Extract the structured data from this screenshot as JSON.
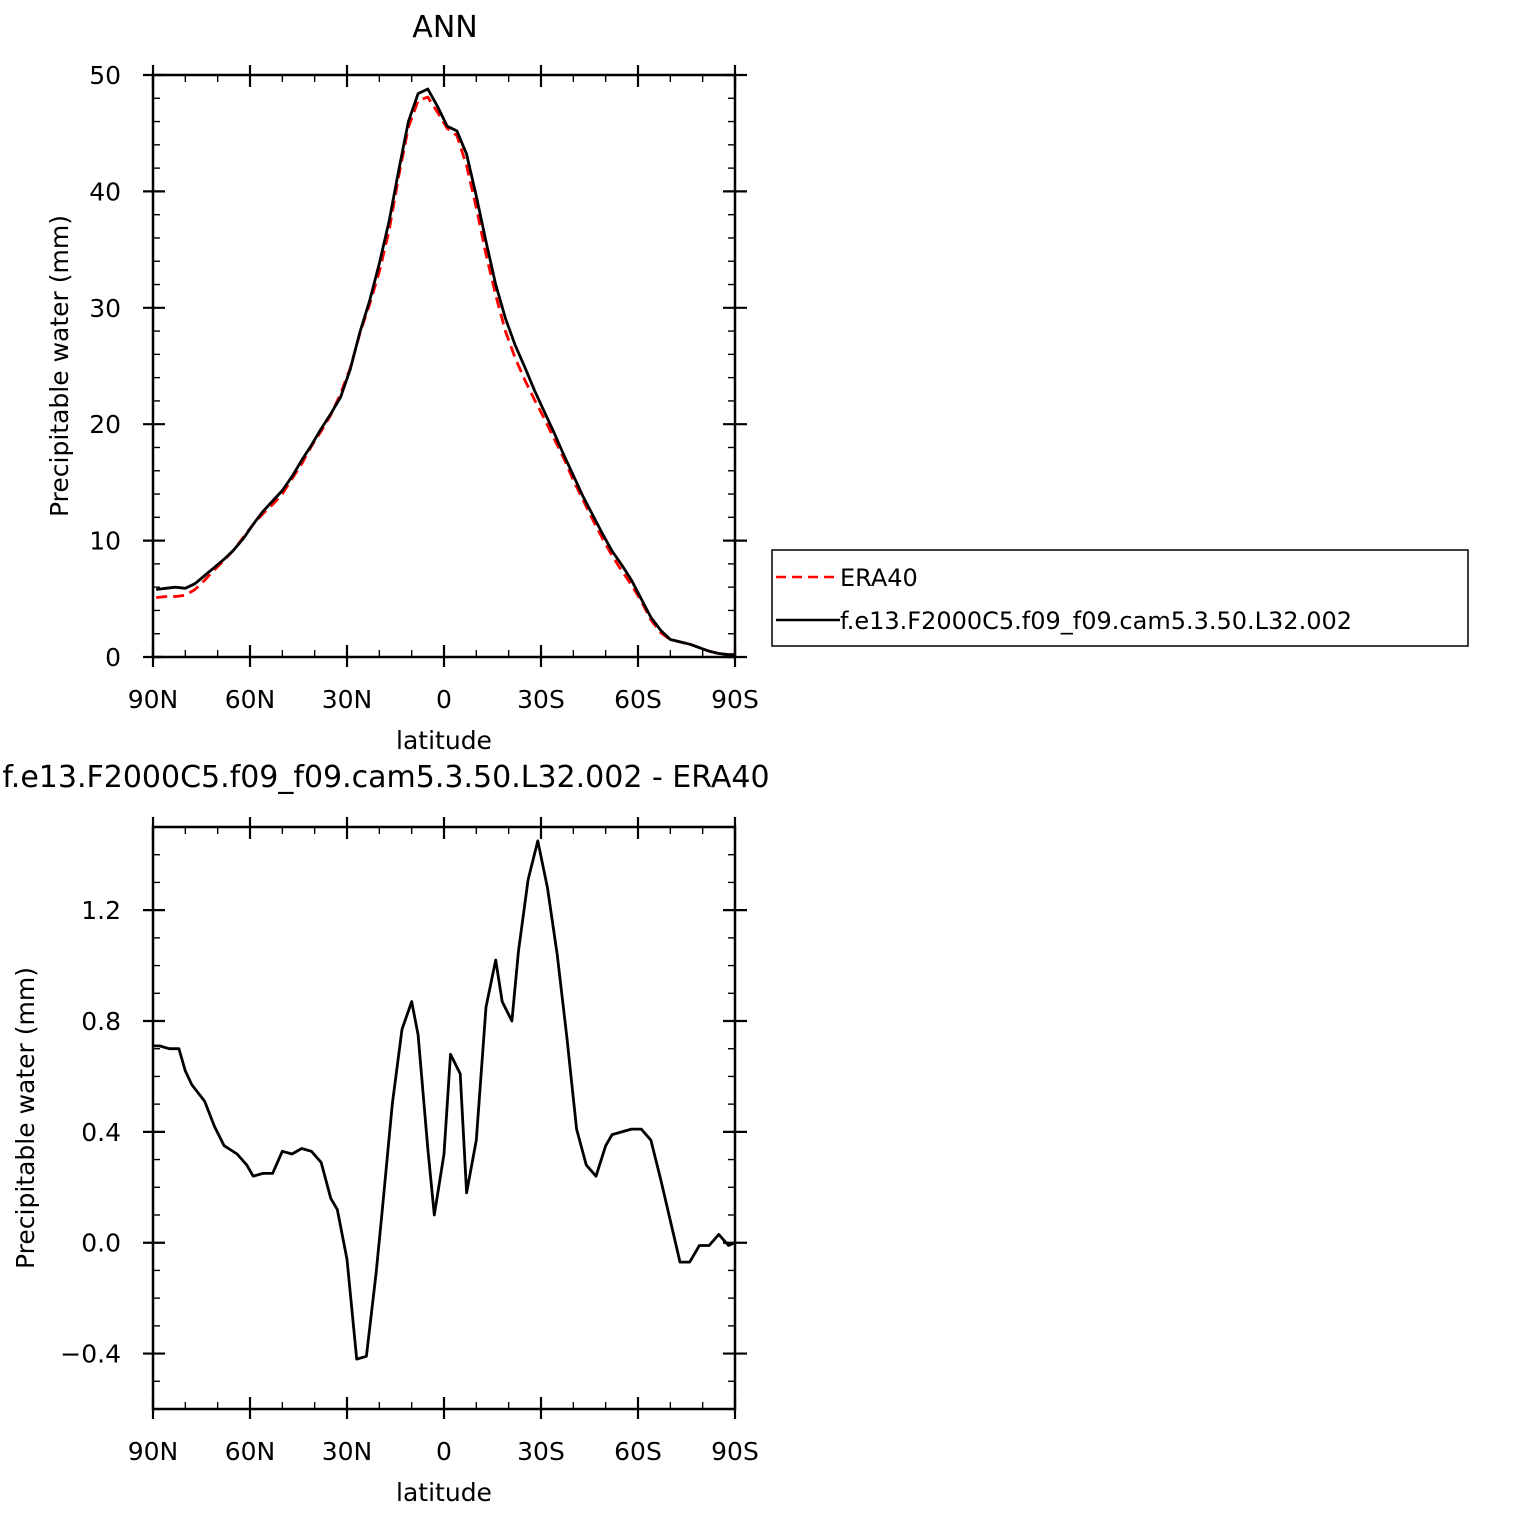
{
  "chart_data": [
    {
      "type": "line",
      "title": "ANN",
      "xlabel": "latitude",
      "ylabel": "Precipitable water (mm)",
      "xlim": [
        -90,
        90
      ],
      "ylim": [
        0,
        50
      ],
      "xticks": [
        -90,
        -60,
        -30,
        0,
        30,
        60,
        90
      ],
      "xtick_labels": [
        "90N",
        "60N",
        "30N",
        "0",
        "30S",
        "60S",
        "90S"
      ],
      "yticks": [
        0,
        10,
        20,
        30,
        40,
        50
      ],
      "ytick_labels": [
        "0",
        "10",
        "20",
        "30",
        "40",
        "50"
      ],
      "legend_position": "right",
      "series": [
        {
          "name": "ERA40",
          "color": "#ff0000",
          "dash": "dashed",
          "x": [
            -89,
            -86,
            -83,
            -80,
            -77,
            -74,
            -71,
            -68,
            -65,
            -62,
            -59,
            -56,
            -53,
            -50,
            -47,
            -44,
            -41,
            -38,
            -35,
            -32,
            -29,
            -26,
            -23,
            -20,
            -17,
            -14,
            -11,
            -8,
            -5,
            -2,
            1,
            4,
            7,
            10,
            13,
            16,
            19,
            22,
            25,
            28,
            31,
            34,
            37,
            40,
            43,
            46,
            49,
            52,
            55,
            58,
            61,
            64,
            67,
            70,
            73,
            76,
            79,
            82,
            85,
            88,
            90
          ],
          "y": [
            5.1,
            5.2,
            5.2,
            5.3,
            5.8,
            6.6,
            7.5,
            8.3,
            9.2,
            10.3,
            11.4,
            12.3,
            13.1,
            14.0,
            15.3,
            16.6,
            18.1,
            19.4,
            20.8,
            22.6,
            24.8,
            27.8,
            30.3,
            33.1,
            36.6,
            41.3,
            45.5,
            47.8,
            48.1,
            46.8,
            45.4,
            44.8,
            42.2,
            38.6,
            34.6,
            31.1,
            28.0,
            25.7,
            23.8,
            22.1,
            20.5,
            18.8,
            17.1,
            15.2,
            13.5,
            11.8,
            10.2,
            8.7,
            7.4,
            6.2,
            4.8,
            3.2,
            2.1,
            1.5,
            1.3,
            1.1,
            0.8,
            0.5,
            0.3,
            0.2,
            0.2
          ]
        },
        {
          "name": "f.e13.F2000C5.f09_f09.cam5.3.50.L32.002",
          "color": "#000000",
          "dash": "solid",
          "x": [
            -89,
            -86,
            -83,
            -80,
            -77,
            -74,
            -71,
            -68,
            -65,
            -62,
            -59,
            -56,
            -53,
            -50,
            -47,
            -44,
            -41,
            -38,
            -35,
            -32,
            -29,
            -26,
            -23,
            -20,
            -17,
            -14,
            -11,
            -8,
            -5,
            -2,
            1,
            4,
            7,
            10,
            13,
            16,
            19,
            22,
            25,
            28,
            31,
            34,
            37,
            40,
            43,
            46,
            49,
            52,
            55,
            58,
            61,
            64,
            67,
            70,
            73,
            76,
            79,
            82,
            85,
            88,
            90
          ],
          "y": [
            5.8,
            5.9,
            6.0,
            5.9,
            6.3,
            7.0,
            7.7,
            8.4,
            9.2,
            10.2,
            11.4,
            12.5,
            13.4,
            14.3,
            15.5,
            16.9,
            18.2,
            19.6,
            20.9,
            22.3,
            24.7,
            27.9,
            30.6,
            33.8,
            37.4,
            41.8,
            46.0,
            48.4,
            48.8,
            47.3,
            45.6,
            45.2,
            43.2,
            39.6,
            35.7,
            32.0,
            29.1,
            26.8,
            24.9,
            22.9,
            21.1,
            19.3,
            17.4,
            15.6,
            13.8,
            12.2,
            10.6,
            9.1,
            7.9,
            6.6,
            5.0,
            3.4,
            2.3,
            1.5,
            1.3,
            1.1,
            0.8,
            0.5,
            0.3,
            0.2,
            0.2
          ]
        }
      ]
    },
    {
      "type": "line",
      "title": "f.e13.F2000C5.f09_f09.cam5.3.50.L32.002 - ERA40",
      "xlabel": "latitude",
      "ylabel": "Precipitable water (mm)",
      "xlim": [
        -90,
        90
      ],
      "ylim": [
        -0.6,
        1.5
      ],
      "xticks": [
        -90,
        -60,
        -30,
        0,
        30,
        60,
        90
      ],
      "xtick_labels": [
        "90N",
        "60N",
        "30N",
        "0",
        "30S",
        "60S",
        "90S"
      ],
      "yticks": [
        -0.4,
        0,
        0.4,
        0.8,
        1.2
      ],
      "ytick_labels": [
        "−0.4",
        "0.0",
        "0.4",
        "0.8",
        "1.2"
      ],
      "series": [
        {
          "color": "#000000",
          "dash": "solid",
          "x": [
            -90,
            -88,
            -85,
            -82,
            -80,
            -78,
            -74,
            -71,
            -68,
            -64,
            -61,
            -59,
            -56,
            -53,
            -50,
            -47,
            -44,
            -41,
            -38,
            -35,
            -33,
            -30,
            -27,
            -24,
            -21,
            -19,
            -16,
            -13,
            -10,
            -8,
            -5,
            -3,
            0,
            2,
            5,
            7,
            10,
            13,
            16,
            18,
            21,
            23,
            26,
            29,
            32,
            35,
            38,
            41,
            44,
            47,
            50,
            52,
            55,
            58,
            61,
            64,
            67,
            70,
            73,
            76,
            79,
            82,
            85,
            88,
            90
          ],
          "y": [
            0.71,
            0.71,
            0.7,
            0.7,
            0.62,
            0.57,
            0.51,
            0.42,
            0.35,
            0.32,
            0.28,
            0.24,
            0.25,
            0.25,
            0.33,
            0.32,
            0.34,
            0.33,
            0.29,
            0.16,
            0.12,
            -0.06,
            -0.42,
            -0.41,
            -0.11,
            0.13,
            0.5,
            0.77,
            0.87,
            0.75,
            0.34,
            0.1,
            0.32,
            0.68,
            0.61,
            0.18,
            0.37,
            0.85,
            1.02,
            0.87,
            0.8,
            1.05,
            1.31,
            1.45,
            1.28,
            1.04,
            0.74,
            0.41,
            0.28,
            0.24,
            0.35,
            0.39,
            0.4,
            0.41,
            0.41,
            0.37,
            0.23,
            0.08,
            -0.07,
            -0.07,
            -0.01,
            -0.01,
            0.03,
            -0.01,
            0.0
          ]
        }
      ]
    }
  ]
}
